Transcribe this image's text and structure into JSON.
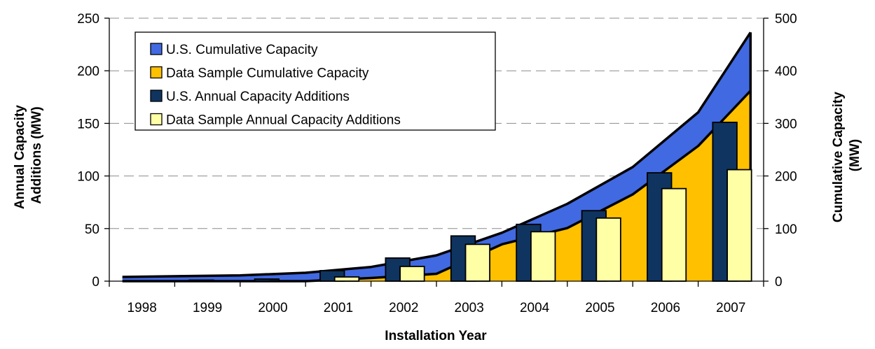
{
  "chart_data": {
    "type": "bar",
    "x_label": "Installation Year",
    "y_left_label": [
      "Annual Capacity",
      "Additions (MW)"
    ],
    "y_right_label": [
      "Cumulative Capacity",
      "(MW)"
    ],
    "categories": [
      "1998",
      "1999",
      "2000",
      "2001",
      "2002",
      "2003",
      "2004",
      "2005",
      "2006",
      "2007"
    ],
    "y_left": {
      "min": 0,
      "max": 250,
      "ticks": [
        "0",
        "50",
        "100",
        "150",
        "200",
        "250"
      ]
    },
    "y_right": {
      "min": 0,
      "max": 500,
      "ticks": [
        "0",
        "100",
        "200",
        "300",
        "400",
        "500"
      ]
    },
    "grid": "horizontal dashed",
    "legend": {
      "position": "top-left",
      "items": [
        {
          "label": "U.S. Cumulative Capacity",
          "color": "#4169E1"
        },
        {
          "label": "Data Sample Cumulative Capacity",
          "color": "#FFC000"
        },
        {
          "label": "U.S. Annual Capacity Additions",
          "color": "#0F3460"
        },
        {
          "label": "Data Sample Annual Capacity Additions",
          "color": "#FFFFA6"
        }
      ]
    },
    "series": [
      {
        "name": "U.S. Cumulative Capacity",
        "kind": "area",
        "axis": "right",
        "color": "#4169E1",
        "values": [
          8,
          11,
          16,
          27,
          49,
          92,
          147,
          217,
          321,
          473
        ]
      },
      {
        "name": "Data Sample Cumulative Capacity",
        "kind": "area",
        "axis": "right",
        "color": "#FFC000",
        "values": [
          0,
          0,
          0,
          6,
          14,
          70,
          101,
          165,
          257,
          362
        ]
      },
      {
        "name": "U.S. Annual Capacity Additions",
        "kind": "bar",
        "axis": "left",
        "color": "#0F3460",
        "values": [
          0,
          1,
          2,
          10,
          22,
          43,
          54,
          67,
          103,
          151
        ]
      },
      {
        "name": "Data Sample Annual Capacity Additions",
        "kind": "bar",
        "axis": "left",
        "color": "#FFFFA6",
        "values": [
          0,
          0,
          0,
          4,
          14,
          35,
          47,
          60,
          88,
          106
        ]
      }
    ]
  }
}
